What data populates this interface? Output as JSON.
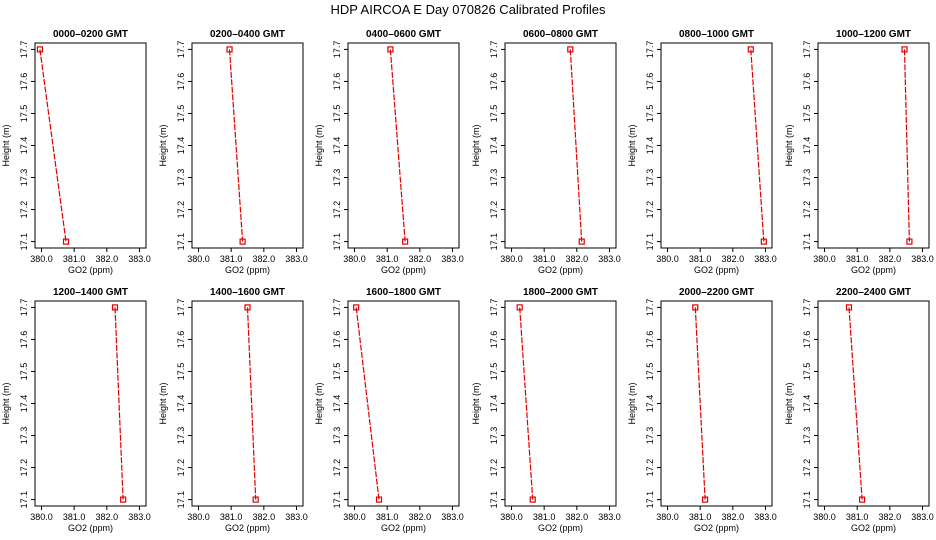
{
  "figure": {
    "title": "HDP  AIRCOA E  Day 070826  Calibrated Profiles"
  },
  "style": {
    "line_color": "#e00000",
    "marker_color": "#e00000",
    "axis_color": "#000000"
  },
  "chart_data": [
    {
      "type": "line",
      "title": "0000–0200 GMT",
      "xlabel": "GO2 (ppm)",
      "ylabel": "Height (m)",
      "xticks": [
        "380.0",
        "381.0",
        "382.0",
        "383.0"
      ],
      "yticks": [
        "17.1",
        "17.2",
        "17.3",
        "17.4",
        "17.5",
        "17.6",
        "17.7"
      ],
      "xlim": [
        379.8,
        383.2
      ],
      "ylim": [
        17.08,
        17.72
      ],
      "series": [
        {
          "x": [
            379.95,
            380.75
          ],
          "y": [
            17.7,
            17.1
          ]
        }
      ]
    },
    {
      "type": "line",
      "title": "0200–0400 GMT",
      "xlabel": "GO2 (ppm)",
      "ylabel": "Height (m)",
      "xticks": [
        "380.0",
        "381.0",
        "382.0",
        "383.0"
      ],
      "yticks": [
        "17.1",
        "17.2",
        "17.3",
        "17.4",
        "17.5",
        "17.6",
        "17.7"
      ],
      "xlim": [
        379.8,
        383.2
      ],
      "ylim": [
        17.08,
        17.72
      ],
      "series": [
        {
          "x": [
            380.95,
            381.35
          ],
          "y": [
            17.7,
            17.1
          ]
        }
      ]
    },
    {
      "type": "line",
      "title": "0400–0600 GMT",
      "xlabel": "GO2 (ppm)",
      "ylabel": "Height (m)",
      "xticks": [
        "380.0",
        "381.0",
        "382.0",
        "383.0"
      ],
      "yticks": [
        "17.1",
        "17.2",
        "17.3",
        "17.4",
        "17.5",
        "17.6",
        "17.7"
      ],
      "xlim": [
        379.8,
        383.2
      ],
      "ylim": [
        17.08,
        17.72
      ],
      "series": [
        {
          "x": [
            381.1,
            381.55
          ],
          "y": [
            17.7,
            17.1
          ]
        }
      ]
    },
    {
      "type": "line",
      "title": "0600–0800 GMT",
      "xlabel": "GO2 (ppm)",
      "ylabel": "Height (m)",
      "xticks": [
        "380.0",
        "381.0",
        "382.0",
        "383.0"
      ],
      "yticks": [
        "17.1",
        "17.2",
        "17.3",
        "17.4",
        "17.5",
        "17.6",
        "17.7"
      ],
      "xlim": [
        379.8,
        383.2
      ],
      "ylim": [
        17.08,
        17.72
      ],
      "series": [
        {
          "x": [
            381.8,
            382.15
          ],
          "y": [
            17.7,
            17.1
          ]
        }
      ]
    },
    {
      "type": "line",
      "title": "0800–1000 GMT",
      "xlabel": "GO2 (ppm)",
      "ylabel": "Height (m)",
      "xticks": [
        "380.0",
        "381.0",
        "382.0",
        "383.0"
      ],
      "yticks": [
        "17.1",
        "17.2",
        "17.3",
        "17.4",
        "17.5",
        "17.6",
        "17.7"
      ],
      "xlim": [
        379.8,
        383.2
      ],
      "ylim": [
        17.08,
        17.72
      ],
      "series": [
        {
          "x": [
            382.55,
            382.95
          ],
          "y": [
            17.7,
            17.1
          ]
        }
      ]
    },
    {
      "type": "line",
      "title": "1000–1200 GMT",
      "xlabel": "GO2 (ppm)",
      "ylabel": "Height (m)",
      "xticks": [
        "380.0",
        "381.0",
        "382.0",
        "383.0"
      ],
      "yticks": [
        "17.1",
        "17.2",
        "17.3",
        "17.4",
        "17.5",
        "17.6",
        "17.7"
      ],
      "xlim": [
        379.8,
        383.2
      ],
      "ylim": [
        17.08,
        17.72
      ],
      "series": [
        {
          "x": [
            382.45,
            382.6
          ],
          "y": [
            17.7,
            17.1
          ]
        }
      ]
    },
    {
      "type": "line",
      "title": "1200–1400 GMT",
      "xlabel": "GO2 (ppm)",
      "ylabel": "Height (m)",
      "xticks": [
        "380.0",
        "381.0",
        "382.0",
        "383.0"
      ],
      "yticks": [
        "17.1",
        "17.2",
        "17.3",
        "17.4",
        "17.5",
        "17.6",
        "17.7"
      ],
      "xlim": [
        379.8,
        383.2
      ],
      "ylim": [
        17.08,
        17.72
      ],
      "series": [
        {
          "x": [
            382.25,
            382.5
          ],
          "y": [
            17.7,
            17.1
          ]
        }
      ]
    },
    {
      "type": "line",
      "title": "1400–1600 GMT",
      "xlabel": "GO2 (ppm)",
      "ylabel": "Height (m)",
      "xticks": [
        "380.0",
        "381.0",
        "382.0",
        "383.0"
      ],
      "yticks": [
        "17.1",
        "17.2",
        "17.3",
        "17.4",
        "17.5",
        "17.6",
        "17.7"
      ],
      "xlim": [
        379.8,
        383.2
      ],
      "ylim": [
        17.08,
        17.72
      ],
      "series": [
        {
          "x": [
            381.5,
            381.75
          ],
          "y": [
            17.7,
            17.1
          ]
        }
      ]
    },
    {
      "type": "line",
      "title": "1600–1800 GMT",
      "xlabel": "GO2 (ppm)",
      "ylabel": "Height (m)",
      "xticks": [
        "380.0",
        "381.0",
        "382.0",
        "383.0"
      ],
      "yticks": [
        "17.1",
        "17.2",
        "17.3",
        "17.4",
        "17.5",
        "17.6",
        "17.7"
      ],
      "xlim": [
        379.8,
        383.2
      ],
      "ylim": [
        17.08,
        17.72
      ],
      "series": [
        {
          "x": [
            380.05,
            380.75
          ],
          "y": [
            17.7,
            17.1
          ]
        }
      ]
    },
    {
      "type": "line",
      "title": "1800–2000 GMT",
      "xlabel": "GO2 (ppm)",
      "ylabel": "Height (m)",
      "xticks": [
        "380.0",
        "381.0",
        "382.0",
        "383.0"
      ],
      "yticks": [
        "17.1",
        "17.2",
        "17.3",
        "17.4",
        "17.5",
        "17.6",
        "17.7"
      ],
      "xlim": [
        379.8,
        383.2
      ],
      "ylim": [
        17.08,
        17.72
      ],
      "series": [
        {
          "x": [
            380.25,
            380.65
          ],
          "y": [
            17.7,
            17.1
          ]
        }
      ]
    },
    {
      "type": "line",
      "title": "2000–2200 GMT",
      "xlabel": "GO2 (ppm)",
      "ylabel": "Height (m)",
      "xticks": [
        "380.0",
        "381.0",
        "382.0",
        "383.0"
      ],
      "yticks": [
        "17.1",
        "17.2",
        "17.3",
        "17.4",
        "17.5",
        "17.6",
        "17.7"
      ],
      "xlim": [
        379.8,
        383.2
      ],
      "ylim": [
        17.08,
        17.72
      ],
      "series": [
        {
          "x": [
            380.85,
            381.15
          ],
          "y": [
            17.7,
            17.1
          ]
        }
      ]
    },
    {
      "type": "line",
      "title": "2200–2400 GMT",
      "xlabel": "GO2 (ppm)",
      "ylabel": "Height (m)",
      "xticks": [
        "380.0",
        "381.0",
        "382.0",
        "383.0"
      ],
      "yticks": [
        "17.1",
        "17.2",
        "17.3",
        "17.4",
        "17.5",
        "17.6",
        "17.7"
      ],
      "xlim": [
        379.8,
        383.2
      ],
      "ylim": [
        17.08,
        17.72
      ],
      "series": [
        {
          "x": [
            380.75,
            381.15
          ],
          "y": [
            17.7,
            17.1
          ]
        }
      ]
    }
  ]
}
